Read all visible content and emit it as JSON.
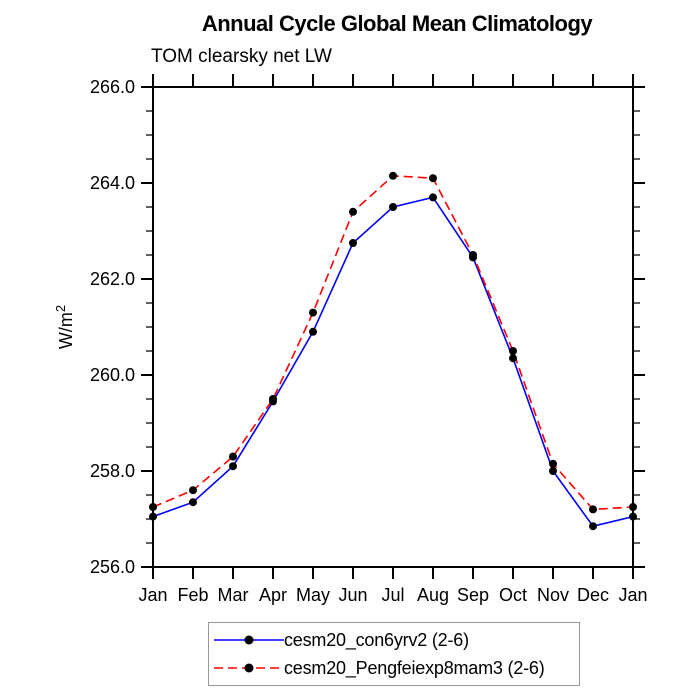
{
  "chart_data": {
    "type": "line",
    "title": "Annual Cycle Global Mean Climatology",
    "subtitle": "TOM clearsky net LW",
    "ylabel": {
      "base": "W/m",
      "sup": "2"
    },
    "categories": [
      "Jan",
      "Feb",
      "Mar",
      "Apr",
      "May",
      "Jun",
      "Jul",
      "Aug",
      "Sep",
      "Oct",
      "Nov",
      "Dec",
      "Jan"
    ],
    "ylim": [
      256.0,
      266.0
    ],
    "ytick_values": [
      256.0,
      258.0,
      260.0,
      262.0,
      264.0,
      266.0
    ],
    "ytick_labels": [
      "256.0",
      "258.0",
      "260.0",
      "262.0",
      "264.0",
      "266.0"
    ],
    "yminor_interval": 0.5,
    "ymajor_interval": 2.0,
    "grid": false,
    "axis_color": "#000000",
    "legend_position": "bottom-center",
    "series": [
      {
        "name": "cesm20_con6yrv2 (2-6)",
        "color": "#0000ff",
        "line_style": "solid",
        "marker": "circle",
        "marker_color": "#000000",
        "values": [
          257.05,
          257.35,
          258.1,
          259.45,
          260.9,
          262.75,
          263.5,
          263.7,
          262.45,
          260.35,
          258.0,
          256.85,
          257.05
        ]
      },
      {
        "name": "cesm20_Pengfeiexp8mam3 (2-6)",
        "color": "#ff0000",
        "line_style": "dashed",
        "marker": "circle",
        "marker_color": "#000000",
        "values": [
          257.25,
          257.6,
          258.3,
          259.5,
          261.3,
          263.4,
          264.15,
          264.1,
          262.5,
          260.5,
          258.15,
          257.2,
          257.25
        ]
      }
    ]
  }
}
